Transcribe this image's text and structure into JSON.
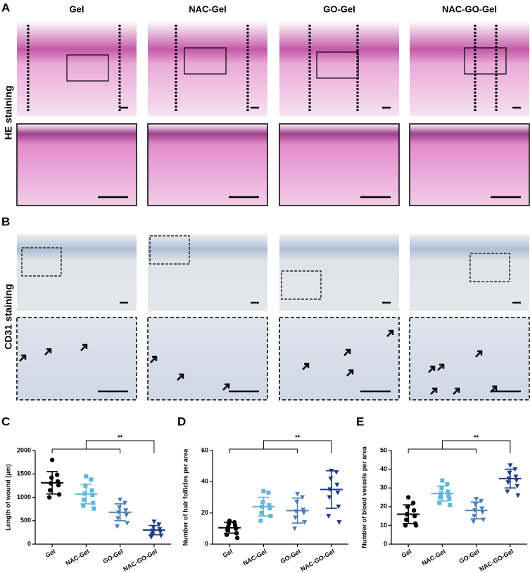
{
  "figure": {
    "panel_labels": [
      "A",
      "B",
      "C",
      "D",
      "E"
    ],
    "columns": [
      "Gel",
      "NAC-Gel",
      "GO-Gel",
      "NAC-GO-Gel"
    ],
    "rows": [
      "HE staining",
      "CD31 staining"
    ]
  },
  "chart_data": [
    {
      "type": "dot",
      "ylabel": "Length of wound (μm)",
      "categories": [
        "Gel",
        "NAC-Gel",
        "GO-Gel",
        "NAC-GO-Gel"
      ],
      "values": [
        [
          1800,
          1480,
          1420,
          1340,
          1300,
          1260,
          1150,
          1060,
          1000
        ],
        [
          1450,
          1380,
          1250,
          1150,
          1080,
          1050,
          950,
          880,
          820,
          760
        ],
        [
          950,
          880,
          780,
          720,
          680,
          620,
          550,
          450,
          380
        ],
        [
          480,
          420,
          360,
          320,
          290,
          260,
          220,
          180,
          150
        ]
      ],
      "mean": [
        1310,
        1070,
        680,
        300
      ],
      "sd": [
        240,
        210,
        180,
        100
      ],
      "colors": [
        "#000000",
        "#5fb8d8",
        "#4a7fb8",
        "#1f3c8a"
      ],
      "markers": [
        "circle",
        "square",
        "triangle-down",
        "triangle-down"
      ],
      "significance": "**",
      "ylim": [
        0,
        2000
      ],
      "yticks": [
        0,
        500,
        1000,
        1500,
        2000
      ]
    },
    {
      "type": "dot",
      "ylabel": "Number of hair follicles per area",
      "categories": [
        "Gel",
        "NAC-Gel",
        "GO-Gel",
        "NAC-GO-Gel"
      ],
      "values": [
        [
          15,
          14,
          13,
          12,
          11,
          10,
          9,
          7,
          6,
          4
        ],
        [
          34,
          33,
          27,
          25,
          24,
          23,
          20,
          18,
          15
        ],
        [
          32,
          30,
          27,
          22,
          21,
          20,
          17,
          14,
          10
        ],
        [
          47,
          46,
          42,
          38,
          35,
          33,
          30,
          24,
          18,
          14
        ]
      ],
      "mean": [
        10.5,
        24,
        21.5,
        35
      ],
      "sd": [
        3.5,
        6,
        8,
        12
      ],
      "colors": [
        "#000000",
        "#5fb8d8",
        "#4a7fb8",
        "#1f3c8a"
      ],
      "markers": [
        "circle",
        "square",
        "triangle-down",
        "triangle-down"
      ],
      "significance": "**",
      "ylim": [
        0,
        60
      ],
      "yticks": [
        0,
        20,
        40,
        60
      ]
    },
    {
      "type": "dot",
      "ylabel": "Number of blood vessels per area",
      "categories": [
        "Gel",
        "NAC-Gel",
        "GO-Gel",
        "NAC-GO-Gel"
      ],
      "values": [
        [
          25,
          22,
          20,
          18,
          16,
          15,
          13,
          11,
          10,
          10
        ],
        [
          34,
          32,
          30,
          28,
          27,
          26,
          25,
          24,
          22,
          21
        ],
        [
          24,
          23,
          21,
          19,
          18,
          17,
          15,
          13,
          12
        ],
        [
          42,
          40,
          38,
          36,
          35,
          34,
          33,
          31,
          28,
          26
        ]
      ],
      "mean": [
        16,
        27,
        18,
        35
      ],
      "sd": [
        5,
        4,
        4.5,
        5
      ],
      "colors": [
        "#000000",
        "#5fb8d8",
        "#4a7fb8",
        "#1f3c8a"
      ],
      "markers": [
        "circle",
        "square",
        "triangle-down",
        "triangle-down"
      ],
      "significance": "**",
      "ylim": [
        0,
        50
      ],
      "yticks": [
        0,
        10,
        20,
        30,
        40,
        50
      ]
    }
  ]
}
